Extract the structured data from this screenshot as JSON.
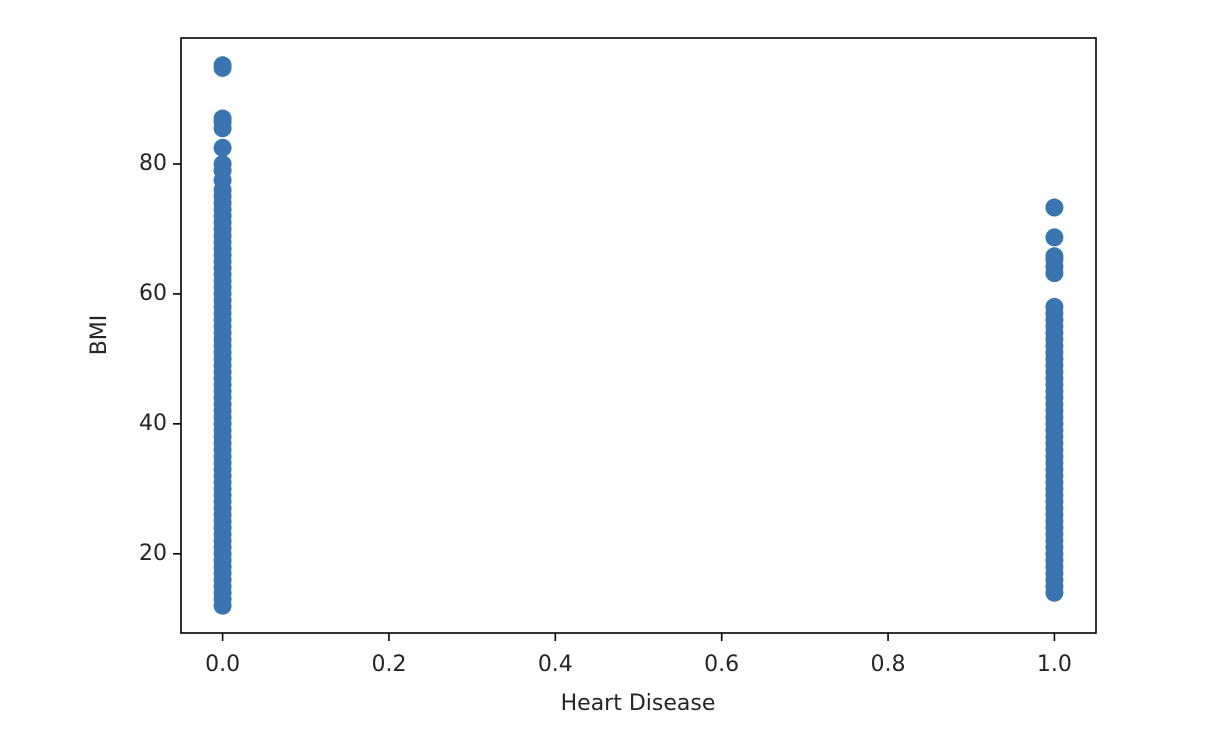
{
  "chart_data": {
    "type": "scatter",
    "xlabel": "Heart Disease",
    "ylabel": "BMI",
    "color": "#3a75b0",
    "x": [
      0,
      0,
      0,
      0,
      0,
      0,
      0,
      0,
      0,
      0,
      0,
      0,
      0,
      0,
      0,
      0,
      0,
      0,
      0,
      0,
      0,
      0,
      0,
      0,
      0,
      0,
      0,
      0,
      0,
      0,
      0,
      0,
      0,
      0,
      0,
      0,
      0,
      0,
      0,
      0,
      0,
      0,
      0,
      0,
      0,
      0,
      0,
      0,
      0,
      0,
      0,
      0,
      0,
      0,
      0,
      0,
      0,
      0,
      0,
      0,
      0,
      0,
      0,
      0,
      0,
      0,
      0,
      0,
      0,
      0,
      0,
      0,
      0,
      0,
      1,
      1,
      1,
      1,
      1,
      1,
      1,
      1,
      1,
      1,
      1,
      1,
      1,
      1,
      1,
      1,
      1,
      1,
      1,
      1,
      1,
      1,
      1,
      1,
      1,
      1,
      1,
      1,
      1,
      1,
      1,
      1,
      1,
      1,
      1,
      1,
      1,
      1,
      1,
      1,
      1,
      1,
      1,
      1,
      1,
      1,
      1,
      1,
      1,
      1,
      1
    ],
    "values": [
      12,
      13,
      14,
      15,
      16,
      17,
      18,
      19,
      20,
      21,
      22,
      23,
      24,
      25,
      26,
      27,
      28,
      29,
      30,
      31,
      32,
      33,
      34,
      35,
      36,
      37,
      38,
      39,
      40,
      41,
      42,
      43,
      44,
      45,
      46,
      47,
      48,
      49,
      50,
      51,
      52,
      53,
      54,
      55,
      56,
      57,
      58,
      59,
      60,
      61,
      62,
      63,
      64,
      65,
      66,
      67,
      68,
      69,
      70,
      71,
      72,
      73,
      74,
      75,
      76,
      77.5,
      79,
      80,
      82.5,
      85.5,
      86.5,
      87,
      94.8,
      95.2,
      14,
      15,
      16,
      17,
      18,
      19,
      20,
      21,
      22,
      23,
      24,
      25,
      26,
      27,
      28,
      29,
      30,
      31,
      32,
      33,
      34,
      35,
      36,
      37,
      38,
      39,
      40,
      41,
      42,
      43,
      44,
      45,
      46,
      47,
      48,
      49,
      50,
      51,
      52,
      53,
      54,
      55,
      56,
      57,
      58,
      63.2,
      64.2,
      65.3,
      65.8,
      68.7,
      73.3
    ],
    "xlim": [
      -0.05,
      1.05
    ],
    "xticks": [
      {
        "value": 0,
        "label": "0.0"
      },
      {
        "value": 0.2,
        "label": "0.2"
      },
      {
        "value": 0.4,
        "label": "0.4"
      },
      {
        "value": 0.6,
        "label": "0.6"
      },
      {
        "value": 0.8,
        "label": "0.8"
      },
      {
        "value": 1,
        "label": "1.0"
      }
    ],
    "ylim": [
      7.8,
      99.4
    ],
    "yticks": [
      20,
      40,
      60,
      80
    ],
    "grid": false
  }
}
